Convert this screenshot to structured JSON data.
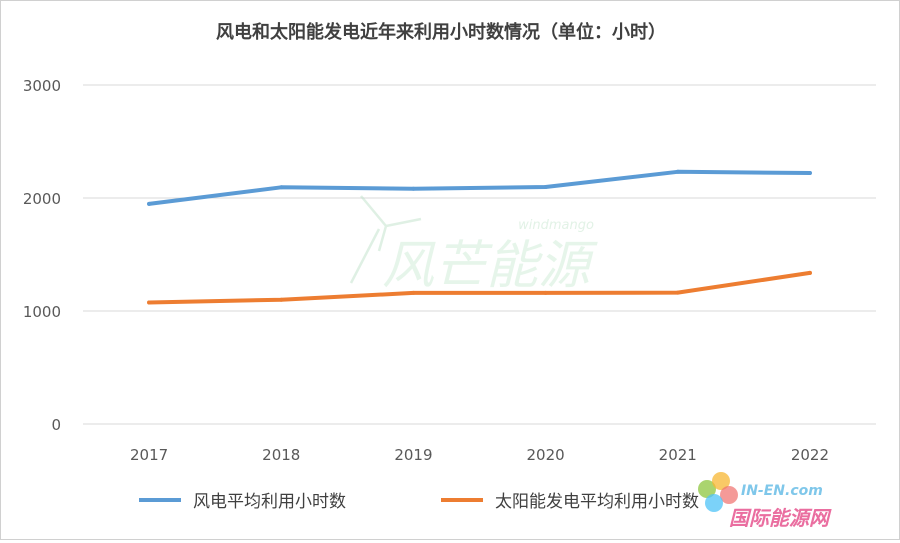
{
  "chart_data": {
    "type": "line",
    "title": "风电和太阳能发电近年来利用小时数情况（单位：小时）",
    "categories": [
      "2017",
      "2018",
      "2019",
      "2020",
      "2021",
      "2022"
    ],
    "ylim": [
      0,
      3000
    ],
    "yticks": [
      "0",
      "1000",
      "2000",
      "3000"
    ],
    "grid": true,
    "legend_position": "bottom",
    "series": [
      {
        "name": "风电平均利用小时数",
        "color": "#5B9BD5",
        "values": [
          1948,
          2095,
          2082,
          2097,
          2232,
          2221
        ]
      },
      {
        "name": "太阳能发电平均利用小时数",
        "color": "#ED7D31",
        "values": [
          1075,
          1100,
          1160,
          1160,
          1163,
          1337
        ]
      }
    ]
  },
  "watermark": {
    "center_cn": "风芒能源",
    "center_en": "windmango",
    "corner_en": "IN-EN.com",
    "corner_cn": "国际能源网"
  }
}
